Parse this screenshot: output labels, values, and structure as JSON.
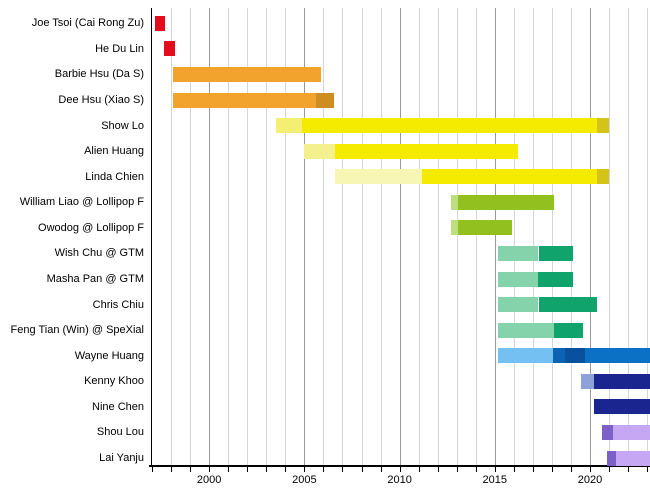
{
  "chart_data": {
    "type": "bar",
    "variant": "gantt-timeline",
    "title": "",
    "xlabel": "",
    "ylabel": "",
    "legend": "none",
    "grid": true,
    "x_axis": {
      "min": 1997,
      "max": 2023.15,
      "labeled_ticks": [
        2000,
        2005,
        2010,
        2015,
        2020
      ],
      "minor_tick_interval": 1
    },
    "rows": [
      {
        "label": "Joe Tsoi (Cai Rong Zu)",
        "segments": [
          {
            "start": 1997.15,
            "end": 1997.7,
            "color": "#e30b1c"
          }
        ]
      },
      {
        "label": "He Du Lin",
        "segments": [
          {
            "start": 1997.65,
            "end": 1998.2,
            "color": "#e30b1c"
          }
        ]
      },
      {
        "label": "Barbie Hsu (Da S)",
        "segments": [
          {
            "start": 1998.1,
            "end": 2005.9,
            "color": "#f2a32e"
          }
        ]
      },
      {
        "label": "Dee Hsu (Xiao S)",
        "segments": [
          {
            "start": 1998.1,
            "end": 2005.6,
            "color": "#f2a32e"
          },
          {
            "start": 2005.6,
            "end": 2006.55,
            "color": "#cd8d20"
          }
        ]
      },
      {
        "label": "Show Lo",
        "segments": [
          {
            "start": 2003.5,
            "end": 2004.9,
            "color": "#f4ee72"
          },
          {
            "start": 2004.9,
            "end": 2020.35,
            "color": "#f4eb00"
          },
          {
            "start": 2020.35,
            "end": 2021.0,
            "color": "#d4c419"
          }
        ]
      },
      {
        "label": "Alien Huang",
        "segments": [
          {
            "start": 2005.0,
            "end": 2006.6,
            "color": "#f4f08e"
          },
          {
            "start": 2006.6,
            "end": 2016.2,
            "color": "#f4eb00"
          }
        ]
      },
      {
        "label": "Linda Chien",
        "segments": [
          {
            "start": 2006.6,
            "end": 2011.2,
            "color": "#f8f6b4"
          },
          {
            "start": 2011.2,
            "end": 2020.35,
            "color": "#f4eb00"
          },
          {
            "start": 2020.35,
            "end": 2021.0,
            "color": "#d4c419"
          }
        ]
      },
      {
        "label": "William Liao @ Lollipop F",
        "segments": [
          {
            "start": 2012.7,
            "end": 2013.05,
            "color": "#bedc80"
          },
          {
            "start": 2013.05,
            "end": 2018.1,
            "color": "#92c01e"
          }
        ]
      },
      {
        "label": "Owodog @ Lollipop F",
        "segments": [
          {
            "start": 2012.7,
            "end": 2013.05,
            "color": "#bedc80"
          },
          {
            "start": 2013.05,
            "end": 2015.9,
            "color": "#92c01e"
          }
        ]
      },
      {
        "label": "Wish Chu @ GTM",
        "segments": [
          {
            "start": 2015.15,
            "end": 2017.3,
            "color": "#85d3ab"
          },
          {
            "start": 2017.3,
            "end": 2019.1,
            "color": "#10a36c"
          }
        ]
      },
      {
        "label": "Masha Pan @ GTM",
        "segments": [
          {
            "start": 2015.15,
            "end": 2017.25,
            "color": "#85d3ab"
          },
          {
            "start": 2017.25,
            "end": 2019.1,
            "color": "#10a36c"
          }
        ]
      },
      {
        "label": "Chris Chiu",
        "segments": [
          {
            "start": 2015.15,
            "end": 2017.3,
            "color": "#85d3ab"
          },
          {
            "start": 2017.3,
            "end": 2020.35,
            "color": "#10a36c"
          }
        ]
      },
      {
        "label": "Feng Tian (Win) @ SpeXial",
        "segments": [
          {
            "start": 2015.15,
            "end": 2018.1,
            "color": "#85d3ab"
          },
          {
            "start": 2018.1,
            "end": 2019.65,
            "color": "#10a36c"
          }
        ]
      },
      {
        "label": "Wayne Huang",
        "segments": [
          {
            "start": 2015.15,
            "end": 2018.05,
            "color": "#74c0f2"
          },
          {
            "start": 2018.05,
            "end": 2018.7,
            "color": "#0c63b4"
          },
          {
            "start": 2018.7,
            "end": 2019.75,
            "color": "#09519e"
          },
          {
            "start": 2019.75,
            "end": 2023.15,
            "color": "#0b71c4"
          }
        ]
      },
      {
        "label": "Kenny Khoo",
        "segments": [
          {
            "start": 2019.55,
            "end": 2020.2,
            "color": "#8ea2d8"
          },
          {
            "start": 2020.2,
            "end": 2023.15,
            "color": "#1b2590"
          }
        ]
      },
      {
        "label": "Nine Chen",
        "segments": [
          {
            "start": 2020.2,
            "end": 2023.15,
            "color": "#1b2590"
          }
        ]
      },
      {
        "label": "Shou Lou",
        "segments": [
          {
            "start": 2020.65,
            "end": 2021.2,
            "color": "#7c60c8"
          },
          {
            "start": 2021.2,
            "end": 2023.15,
            "color": "#c6a7f4"
          }
        ]
      },
      {
        "label": "Lai Yanju",
        "segments": [
          {
            "start": 2020.9,
            "end": 2021.35,
            "color": "#7c60c8"
          },
          {
            "start": 2021.35,
            "end": 2023.15,
            "color": "#c6a7f4"
          }
        ]
      }
    ]
  }
}
